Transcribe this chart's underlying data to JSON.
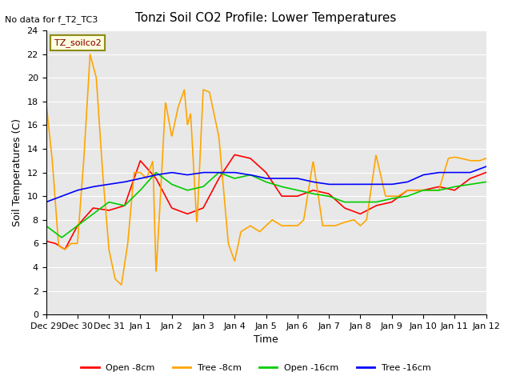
{
  "title": "Tonzi Soil CO2 Profile: Lower Temperatures",
  "subtitle": "No data for f_T2_TC3",
  "xlabel": "Time",
  "ylabel": "Soil Temperatures (C)",
  "xlim_days": [
    0,
    14
  ],
  "ylim": [
    0,
    24
  ],
  "yticks": [
    0,
    2,
    4,
    6,
    8,
    10,
    12,
    14,
    16,
    18,
    20,
    22,
    24
  ],
  "xtick_labels": [
    "Dec 29",
    "Dec 30",
    "Dec 31",
    "Jan 1",
    "Jan 2",
    "Jan 3",
    "Jan 4",
    "Jan 5",
    "Jan 6",
    "Jan 7",
    "Jan 8",
    "Jan 9",
    "Jan 10",
    "Jan 11",
    "Jan 12"
  ],
  "bg_color": "#e8e8e8",
  "legend_label": "TZ_soilco2",
  "series_colors": {
    "open8": "#ff0000",
    "tree8": "#ffa500",
    "open16": "#00cc00",
    "tree16": "#0000ff"
  },
  "series_labels": {
    "open8": "Open -8cm",
    "tree8": "Tree -8cm",
    "open16": "Open -16cm",
    "tree16": "Tree -16cm"
  }
}
